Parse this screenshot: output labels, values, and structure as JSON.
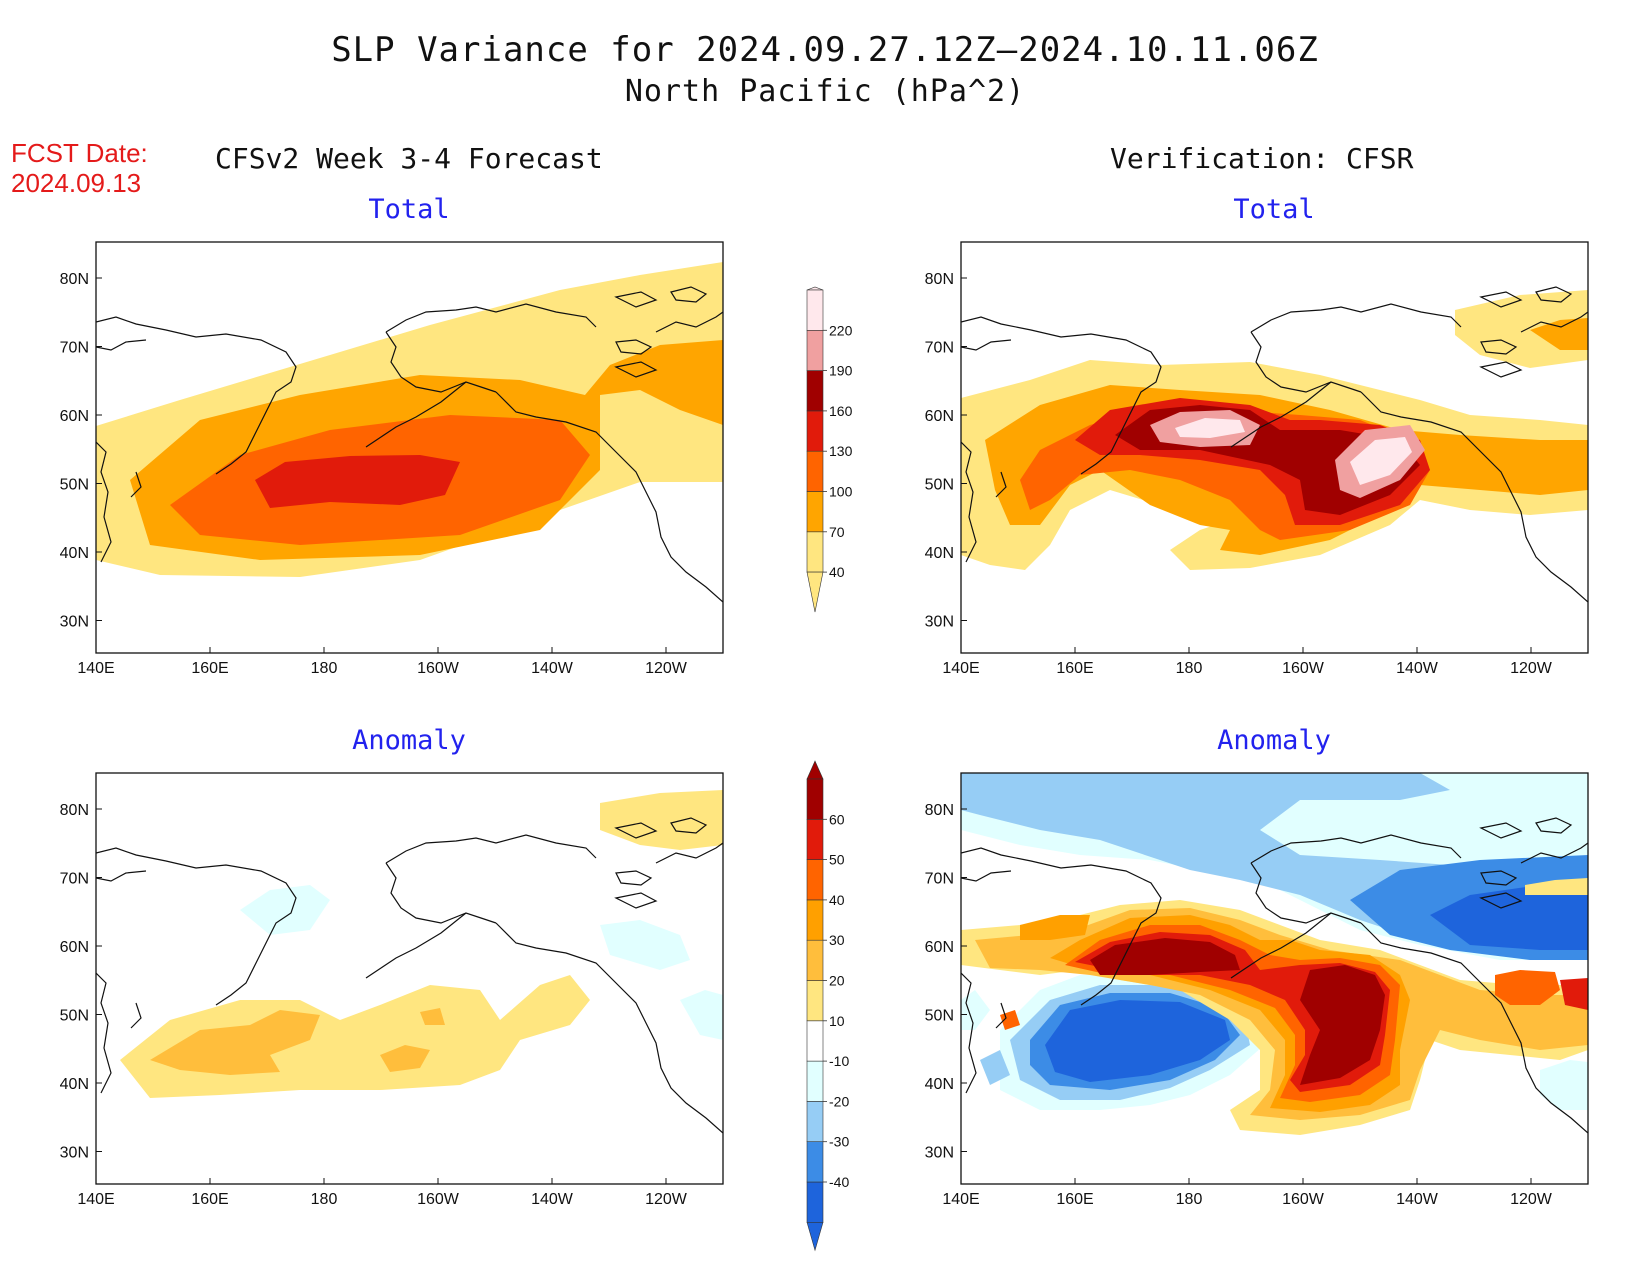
{
  "header": {
    "title_line1": "SLP Variance for 2024.09.27.12Z—2024.10.11.06Z",
    "title_line2": "North Pacific (hPa^2)",
    "fcst_label": "FCST Date:",
    "fcst_date": "2024.09.13",
    "left_heading": "CFSv2 Week 3-4 Forecast",
    "right_heading": "Verification: CFSR"
  },
  "panels": {
    "fc_total": {
      "title": "Total"
    },
    "vf_total": {
      "title": "Total"
    },
    "fc_anom": {
      "title": "Anomaly"
    },
    "vf_anom": {
      "title": "Anomaly"
    }
  },
  "axes": {
    "lon_ticks": [
      "140E",
      "160E",
      "180",
      "160W",
      "140W",
      "120W"
    ],
    "lat_ticks": [
      "80N",
      "70N",
      "60N",
      "50N",
      "40N",
      "30N"
    ]
  },
  "colorbars": {
    "total": {
      "labels": [
        "40",
        "70",
        "100",
        "130",
        "160",
        "190",
        "220"
      ],
      "colors": [
        "#ffe680",
        "#ffa500",
        "#ff6400",
        "#e11b0b",
        "#a00000",
        "#f0a0a0",
        "#ffe8ec"
      ]
    },
    "anomaly": {
      "labels": [
        "-40",
        "-30",
        "-20",
        "-10",
        "10",
        "20",
        "30",
        "40",
        "50",
        "60"
      ],
      "colors": [
        "#1e64dc",
        "#3c8ce6",
        "#96cdf5",
        "#e1ffff",
        "#ffffff",
        "#ffe680",
        "#ffbe3c",
        "#ffa000",
        "#ff6400",
        "#e11b0b",
        "#a00000"
      ]
    }
  },
  "colors": {
    "title_text": "#111111",
    "fcst_text": "#e41a1a",
    "panel_title": "#2222ee"
  }
}
